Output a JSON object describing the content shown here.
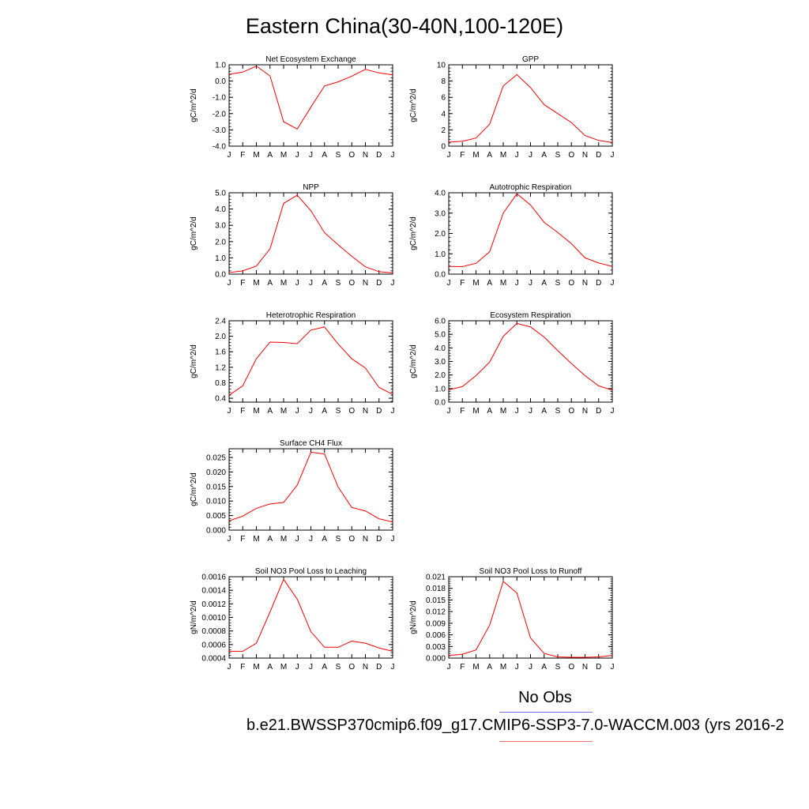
{
  "title": "Eastern China(30-40N,100-120E)",
  "colors": {
    "series": "#ff0000",
    "axis": "#000000",
    "legend_obs": "#7777ee",
    "legend_case": "#ee7777"
  },
  "legend": {
    "obs_label": "No Obs",
    "case_label": "b.e21.BWSSP370cmip6.f09_g17.CMIP6-SSP3-7.0-WACCM.003 (yrs 2016-2"
  },
  "chart_data": [
    {
      "type": "line",
      "title": "Net Ecosystem Exchange",
      "ylabel": "gC/m^2/d",
      "x": [
        "J",
        "F",
        "M",
        "A",
        "M",
        "J",
        "J",
        "A",
        "S",
        "O",
        "N",
        "D",
        "J"
      ],
      "ylim": [
        -4.0,
        1.0
      ],
      "yticks": [
        "-4.0",
        "-3.0",
        "-2.0",
        "-1.0",
        "0.0",
        "1.0"
      ],
      "ytick_values": [
        -4.0,
        -3.0,
        -2.0,
        -1.0,
        0.0,
        1.0
      ],
      "values": [
        0.42,
        0.55,
        0.92,
        0.32,
        -2.5,
        -2.95,
        -1.6,
        -0.3,
        -0.05,
        0.3,
        0.72,
        0.5,
        0.38
      ]
    },
    {
      "type": "line",
      "title": "GPP",
      "ylabel": "gC/m^2/d",
      "x": [
        "J",
        "F",
        "M",
        "A",
        "M",
        "J",
        "J",
        "A",
        "S",
        "O",
        "N",
        "D",
        "J"
      ],
      "ylim": [
        0,
        10
      ],
      "yticks": [
        "0",
        "2",
        "4",
        "6",
        "8",
        "10"
      ],
      "ytick_values": [
        0,
        2,
        4,
        6,
        8,
        10
      ],
      "values": [
        0.5,
        0.6,
        1.0,
        2.7,
        7.4,
        8.8,
        7.2,
        5.1,
        4.0,
        2.9,
        1.3,
        0.7,
        0.45
      ]
    },
    {
      "type": "line",
      "title": "NPP",
      "ylabel": "gC/m^2/d",
      "x": [
        "J",
        "F",
        "M",
        "A",
        "M",
        "J",
        "J",
        "A",
        "S",
        "O",
        "N",
        "D",
        "J"
      ],
      "ylim": [
        0.0,
        5.0
      ],
      "yticks": [
        "0.0",
        "1.0",
        "2.0",
        "3.0",
        "4.0",
        "5.0"
      ],
      "ytick_values": [
        0,
        1,
        2,
        3,
        4,
        5
      ],
      "values": [
        0.1,
        0.2,
        0.5,
        1.55,
        4.35,
        4.85,
        3.9,
        2.55,
        1.8,
        1.1,
        0.45,
        0.15,
        0.08
      ]
    },
    {
      "type": "line",
      "title": "Autotrophic Respiration",
      "ylabel": "gC/m^2/d",
      "x": [
        "J",
        "F",
        "M",
        "A",
        "M",
        "J",
        "J",
        "A",
        "S",
        "O",
        "N",
        "D",
        "J"
      ],
      "ylim": [
        0.0,
        4.0
      ],
      "yticks": [
        "0.0",
        "1.0",
        "2.0",
        "3.0",
        "4.0"
      ],
      "ytick_values": [
        0,
        1,
        2,
        3,
        4
      ],
      "values": [
        0.38,
        0.37,
        0.53,
        1.1,
        3.0,
        3.95,
        3.4,
        2.55,
        2.05,
        1.5,
        0.8,
        0.55,
        0.38
      ]
    },
    {
      "type": "line",
      "title": "Heterotrophic Respiration",
      "ylabel": "gC/m^2/d",
      "x": [
        "J",
        "F",
        "M",
        "A",
        "M",
        "J",
        "J",
        "A",
        "S",
        "O",
        "N",
        "D",
        "J"
      ],
      "ylim": [
        0.3,
        2.4
      ],
      "yticks": [
        "0.4",
        "0.8",
        "1.2",
        "1.6",
        "2.0",
        "2.4"
      ],
      "ytick_values": [
        0.4,
        0.8,
        1.2,
        1.6,
        2.0,
        2.4
      ],
      "values": [
        0.48,
        0.72,
        1.42,
        1.85,
        1.84,
        1.81,
        2.16,
        2.24,
        1.8,
        1.42,
        1.18,
        0.68,
        0.5
      ]
    },
    {
      "type": "line",
      "title": "Ecosystem Respiration",
      "ylabel": "gC/m^2/d",
      "x": [
        "J",
        "F",
        "M",
        "A",
        "M",
        "J",
        "J",
        "A",
        "S",
        "O",
        "N",
        "D",
        "J"
      ],
      "ylim": [
        0.0,
        6.0
      ],
      "yticks": [
        "0.0",
        "1.0",
        "2.0",
        "3.0",
        "4.0",
        "5.0",
        "6.0"
      ],
      "ytick_values": [
        0,
        1,
        2,
        3,
        4,
        5,
        6
      ],
      "values": [
        0.9,
        1.15,
        1.95,
        2.95,
        4.85,
        5.8,
        5.55,
        4.8,
        3.8,
        2.85,
        1.95,
        1.2,
        0.88
      ]
    },
    {
      "type": "line",
      "title": "Surface CH4 Flux",
      "ylabel": "gC/m^2/d",
      "x": [
        "J",
        "F",
        "M",
        "A",
        "M",
        "J",
        "J",
        "A",
        "S",
        "O",
        "N",
        "D",
        "J"
      ],
      "ylim": [
        0.0,
        0.028
      ],
      "yticks": [
        "0.000",
        "0.005",
        "0.010",
        "0.015",
        "0.020",
        "0.025"
      ],
      "ytick_values": [
        0,
        0.005,
        0.01,
        0.015,
        0.02,
        0.025
      ],
      "values": [
        0.0032,
        0.0048,
        0.0075,
        0.009,
        0.0095,
        0.0155,
        0.0268,
        0.0262,
        0.0148,
        0.0078,
        0.0066,
        0.0039,
        0.0028
      ]
    },
    {
      "type": "line",
      "title": "Soil NO3 Pool Loss to Leaching",
      "ylabel": "gN/m^2/d",
      "x": [
        "J",
        "F",
        "M",
        "A",
        "M",
        "J",
        "J",
        "A",
        "S",
        "O",
        "N",
        "D",
        "J"
      ],
      "ylim": [
        0.0004,
        0.0016
      ],
      "yticks": [
        "0.0004",
        "0.0006",
        "0.0008",
        "0.0010",
        "0.0012",
        "0.0014",
        "0.0016"
      ],
      "ytick_values": [
        0.0004,
        0.0006,
        0.0008,
        0.001,
        0.0012,
        0.0014,
        0.0016
      ],
      "values": [
        0.0005,
        0.0005,
        0.00062,
        0.00108,
        0.00156,
        0.00127,
        0.00079,
        0.00056,
        0.00056,
        0.00065,
        0.00062,
        0.00055,
        0.0005
      ]
    },
    {
      "type": "line",
      "title": "Soil NO3 Pool Loss to Runoff",
      "ylabel": "gN/m^2/d",
      "x": [
        "J",
        "F",
        "M",
        "A",
        "M",
        "J",
        "J",
        "A",
        "S",
        "O",
        "N",
        "D",
        "J"
      ],
      "ylim": [
        0.0,
        0.021
      ],
      "yticks": [
        "0.000",
        "0.003",
        "0.006",
        "0.009",
        "0.012",
        "0.015",
        "0.018",
        "0.021"
      ],
      "ytick_values": [
        0,
        0.003,
        0.006,
        0.009,
        0.012,
        0.015,
        0.018,
        0.021
      ],
      "values": [
        0.0007,
        0.001,
        0.0021,
        0.0085,
        0.0198,
        0.0168,
        0.0052,
        0.0012,
        0.0003,
        0.0002,
        0.0002,
        0.0003,
        0.0007
      ]
    }
  ]
}
